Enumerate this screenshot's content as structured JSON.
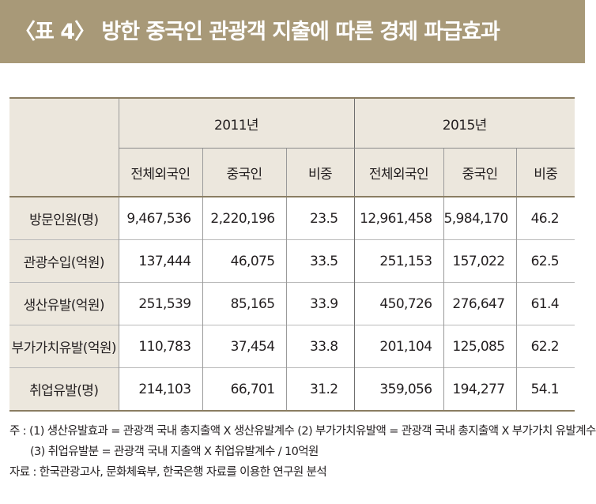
{
  "title": "〈표 4〉 방한 중국인 관광객 지출에 따른 경제 파급효과",
  "table": {
    "years": [
      "2011년",
      "2015년"
    ],
    "subheaders": [
      "전체외국인",
      "중국인",
      "비중",
      "전체외국인",
      "중국인",
      "비중"
    ],
    "rows": [
      {
        "label": "방문인원(명)",
        "cells": [
          "9,467,536",
          "2,220,196",
          "23.5",
          "12,961,458",
          "5,984,170",
          "46.2"
        ]
      },
      {
        "label": "관광수입(억원)",
        "cells": [
          "137,444",
          "46,075",
          "33.5",
          "251,153",
          "157,022",
          "62.5"
        ]
      },
      {
        "label": "생산유발(억원)",
        "cells": [
          "251,539",
          "85,165",
          "33.9",
          "450,726",
          "276,647",
          "61.4"
        ]
      },
      {
        "label": "부가가치유발(억원)",
        "cells": [
          "110,783",
          "37,454",
          "33.8",
          "201,104",
          "125,085",
          "62.2"
        ]
      },
      {
        "label": "취업유발(명)",
        "cells": [
          "214,103",
          "66,701",
          "31.2",
          "359,056",
          "194,277",
          "54.1"
        ]
      }
    ]
  },
  "notes": {
    "line1": "주 : (1) 생산유발효과 = 관광객 국내 총지출액 X 생산유발계수  (2) 부가가치유발액 = 관광객 국내 총지출액 X 부가가치 유발계수",
    "line2": "(3) 취업유발분 = 관광객 국내 지출액 X 취업유발계수 / 10억원",
    "source": "자료 : 한국관광고사, 문화체육부, 한국은행 자료를 이용한 연구원 분석"
  },
  "colors": {
    "title_bar": "#a89978",
    "header_bg": "#ece7dd",
    "rule": "#8a7d62"
  }
}
